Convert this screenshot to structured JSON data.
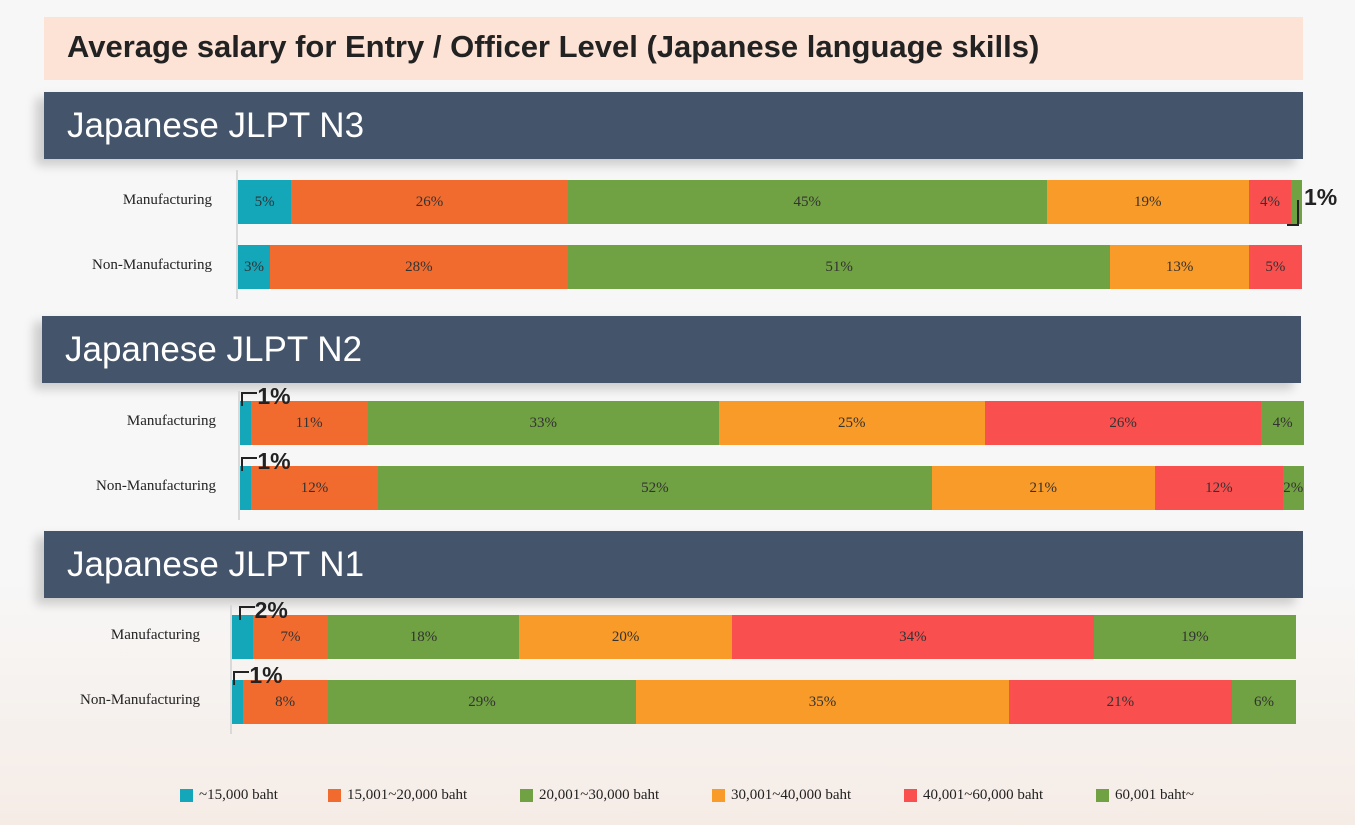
{
  "title": "Average salary for Entry / Officer Level (Japanese language skills)",
  "colors": [
    "#14a6b9",
    "#f26b2e",
    "#70a142",
    "#f99b28",
    "#fa4f4f",
    "#70a142"
  ],
  "header_color": "#44546a",
  "chart_data": {
    "type": "bar",
    "orientation": "horizontal-stacked-100",
    "legend": [
      "~15,000 baht",
      "15,001~20,000 baht",
      "20,001~30,000 baht",
      "30,001~40,000 baht",
      "40,001~60,000 baht",
      "60,001 baht~"
    ],
    "legend_placement": "bottom",
    "groups": [
      {
        "title": "Japanese JLPT N3",
        "categories": [
          "Manufacturing",
          "Non-Manufacturing"
        ],
        "values": [
          [
            5,
            26,
            45,
            19,
            4,
            1
          ],
          [
            3,
            28,
            51,
            13,
            5,
            0
          ]
        ]
      },
      {
        "title": "Japanese JLPT N2",
        "categories": [
          "Manufacturing",
          "Non-Manufacturing"
        ],
        "values": [
          [
            1,
            11,
            33,
            25,
            26,
            4
          ],
          [
            1,
            12,
            52,
            21,
            12,
            2
          ]
        ]
      },
      {
        "title": "Japanese JLPT N1",
        "categories": [
          "Manufacturing",
          "Non-Manufacturing"
        ],
        "values": [
          [
            2,
            7,
            18,
            20,
            34,
            19
          ],
          [
            1,
            8,
            29,
            35,
            21,
            6
          ]
        ]
      }
    ]
  }
}
